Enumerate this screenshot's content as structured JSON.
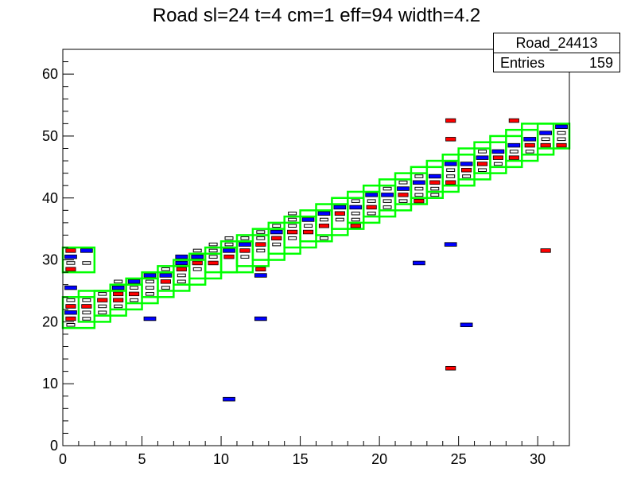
{
  "chart_data": {
    "type": "heatmap",
    "title": "Road sl=24 t=4 cm=1 eff=94 width=4.2",
    "stats_box": {
      "name": "Road_24413",
      "entries_label": "Entries",
      "entries_value": "159"
    },
    "xlim": [
      0,
      32
    ],
    "ylim": [
      0,
      64
    ],
    "x_ticks": [
      0,
      5,
      10,
      15,
      20,
      25,
      30
    ],
    "y_ticks": [
      0,
      10,
      20,
      30,
      40,
      50,
      60
    ],
    "colors": {
      "frame": "#000000",
      "road": "#00ff00",
      "high": "#0000ff",
      "mid": "#ff0000",
      "low": "#000000"
    },
    "road_cells": [
      {
        "x": 0,
        "y": 19,
        "w": 2,
        "h": 5
      },
      {
        "x": 1,
        "y": 20,
        "w": 2,
        "h": 5
      },
      {
        "x": 2,
        "y": 21,
        "w": 2,
        "h": 4
      },
      {
        "x": 3,
        "y": 22,
        "w": 2,
        "h": 4
      },
      {
        "x": 4,
        "y": 23,
        "w": 2,
        "h": 4
      },
      {
        "x": 5,
        "y": 24,
        "w": 2,
        "h": 4
      },
      {
        "x": 6,
        "y": 25,
        "w": 2,
        "h": 4
      },
      {
        "x": 7,
        "y": 26,
        "w": 2,
        "h": 4
      },
      {
        "x": 8,
        "y": 27,
        "w": 2,
        "h": 4
      },
      {
        "x": 9,
        "y": 28,
        "w": 2,
        "h": 4
      },
      {
        "x": 10,
        "y": 28,
        "w": 2,
        "h": 5
      },
      {
        "x": 11,
        "y": 29,
        "w": 2,
        "h": 5
      },
      {
        "x": 12,
        "y": 30,
        "w": 2,
        "h": 5
      },
      {
        "x": 13,
        "y": 31,
        "w": 2,
        "h": 5
      },
      {
        "x": 14,
        "y": 32,
        "w": 2,
        "h": 5
      },
      {
        "x": 15,
        "y": 33,
        "w": 2,
        "h": 5
      },
      {
        "x": 16,
        "y": 34,
        "w": 2,
        "h": 5
      },
      {
        "x": 17,
        "y": 35,
        "w": 2,
        "h": 5
      },
      {
        "x": 18,
        "y": 36,
        "w": 2,
        "h": 5
      },
      {
        "x": 19,
        "y": 37,
        "w": 2,
        "h": 5
      },
      {
        "x": 20,
        "y": 38,
        "w": 2,
        "h": 5
      },
      {
        "x": 21,
        "y": 39,
        "w": 2,
        "h": 5
      },
      {
        "x": 22,
        "y": 40,
        "w": 2,
        "h": 5
      },
      {
        "x": 23,
        "y": 41,
        "w": 2,
        "h": 5
      },
      {
        "x": 24,
        "y": 42,
        "w": 2,
        "h": 5
      },
      {
        "x": 25,
        "y": 43,
        "w": 2,
        "h": 5
      },
      {
        "x": 26,
        "y": 44,
        "w": 2,
        "h": 5
      },
      {
        "x": 27,
        "y": 45,
        "w": 2,
        "h": 5
      },
      {
        "x": 28,
        "y": 46,
        "w": 2,
        "h": 5
      },
      {
        "x": 29,
        "y": 47,
        "w": 2,
        "h": 5
      },
      {
        "x": 30,
        "y": 48,
        "w": 2,
        "h": 4
      },
      {
        "x": 0,
        "y": 28,
        "w": 2,
        "h": 4
      }
    ],
    "bins": [
      {
        "x": 0,
        "y": 19,
        "z": 1
      },
      {
        "x": 0,
        "y": 20,
        "z": 2
      },
      {
        "x": 0,
        "y": 21,
        "z": 3
      },
      {
        "x": 0,
        "y": 22,
        "z": 2
      },
      {
        "x": 0,
        "y": 23,
        "z": 1
      },
      {
        "x": 0,
        "y": 25,
        "z": 3
      },
      {
        "x": 0,
        "y": 28,
        "z": 2
      },
      {
        "x": 0,
        "y": 29,
        "z": 1
      },
      {
        "x": 0,
        "y": 30,
        "z": 3
      },
      {
        "x": 0,
        "y": 31,
        "z": 2
      },
      {
        "x": 1,
        "y": 20,
        "z": 1
      },
      {
        "x": 1,
        "y": 21,
        "z": 1
      },
      {
        "x": 1,
        "y": 22,
        "z": 2
      },
      {
        "x": 1,
        "y": 23,
        "z": 1
      },
      {
        "x": 1,
        "y": 29,
        "z": 1
      },
      {
        "x": 1,
        "y": 31,
        "z": 3
      },
      {
        "x": 2,
        "y": 21,
        "z": 1
      },
      {
        "x": 2,
        "y": 22,
        "z": 1
      },
      {
        "x": 2,
        "y": 23,
        "z": 2
      },
      {
        "x": 2,
        "y": 24,
        "z": 1
      },
      {
        "x": 3,
        "y": 22,
        "z": 1
      },
      {
        "x": 3,
        "y": 23,
        "z": 2
      },
      {
        "x": 3,
        "y": 24,
        "z": 2
      },
      {
        "x": 3,
        "y": 25,
        "z": 3
      },
      {
        "x": 3,
        "y": 26,
        "z": 1
      },
      {
        "x": 4,
        "y": 23,
        "z": 1
      },
      {
        "x": 4,
        "y": 24,
        "z": 2
      },
      {
        "x": 4,
        "y": 25,
        "z": 1
      },
      {
        "x": 4,
        "y": 26,
        "z": 3
      },
      {
        "x": 5,
        "y": 24,
        "z": 1
      },
      {
        "x": 5,
        "y": 25,
        "z": 1
      },
      {
        "x": 5,
        "y": 26,
        "z": 1
      },
      {
        "x": 5,
        "y": 27,
        "z": 3
      },
      {
        "x": 5,
        "y": 20,
        "z": 3
      },
      {
        "x": 6,
        "y": 25,
        "z": 1
      },
      {
        "x": 6,
        "y": 26,
        "z": 2
      },
      {
        "x": 6,
        "y": 27,
        "z": 3
      },
      {
        "x": 6,
        "y": 28,
        "z": 1
      },
      {
        "x": 7,
        "y": 26,
        "z": 1
      },
      {
        "x": 7,
        "y": 27,
        "z": 1
      },
      {
        "x": 7,
        "y": 28,
        "z": 2
      },
      {
        "x": 7,
        "y": 29,
        "z": 3
      },
      {
        "x": 7,
        "y": 30,
        "z": 3
      },
      {
        "x": 8,
        "y": 28,
        "z": 1
      },
      {
        "x": 8,
        "y": 29,
        "z": 2
      },
      {
        "x": 8,
        "y": 30,
        "z": 3
      },
      {
        "x": 8,
        "y": 31,
        "z": 1
      },
      {
        "x": 9,
        "y": 29,
        "z": 2
      },
      {
        "x": 9,
        "y": 30,
        "z": 1
      },
      {
        "x": 9,
        "y": 31,
        "z": 1
      },
      {
        "x": 9,
        "y": 32,
        "z": 1
      },
      {
        "x": 10,
        "y": 30,
        "z": 2
      },
      {
        "x": 10,
        "y": 31,
        "z": 3
      },
      {
        "x": 10,
        "y": 32,
        "z": 1
      },
      {
        "x": 10,
        "y": 33,
        "z": 1
      },
      {
        "x": 10,
        "y": 7,
        "z": 3
      },
      {
        "x": 11,
        "y": 30,
        "z": 1
      },
      {
        "x": 11,
        "y": 31,
        "z": 2
      },
      {
        "x": 11,
        "y": 32,
        "z": 3
      },
      {
        "x": 11,
        "y": 33,
        "z": 1
      },
      {
        "x": 12,
        "y": 31,
        "z": 1
      },
      {
        "x": 12,
        "y": 32,
        "z": 2
      },
      {
        "x": 12,
        "y": 33,
        "z": 1
      },
      {
        "x": 12,
        "y": 34,
        "z": 1
      },
      {
        "x": 12,
        "y": 28,
        "z": 2
      },
      {
        "x": 12,
        "y": 27,
        "z": 3
      },
      {
        "x": 12,
        "y": 20,
        "z": 3
      },
      {
        "x": 13,
        "y": 32,
        "z": 1
      },
      {
        "x": 13,
        "y": 33,
        "z": 2
      },
      {
        "x": 13,
        "y": 34,
        "z": 3
      },
      {
        "x": 13,
        "y": 35,
        "z": 1
      },
      {
        "x": 14,
        "y": 33,
        "z": 1
      },
      {
        "x": 14,
        "y": 34,
        "z": 2
      },
      {
        "x": 14,
        "y": 35,
        "z": 1
      },
      {
        "x": 14,
        "y": 36,
        "z": 1
      },
      {
        "x": 14,
        "y": 37,
        "z": 1
      },
      {
        "x": 15,
        "y": 34,
        "z": 2
      },
      {
        "x": 15,
        "y": 35,
        "z": 1
      },
      {
        "x": 15,
        "y": 36,
        "z": 3
      },
      {
        "x": 16,
        "y": 33,
        "z": 1
      },
      {
        "x": 16,
        "y": 35,
        "z": 2
      },
      {
        "x": 16,
        "y": 36,
        "z": 1
      },
      {
        "x": 16,
        "y": 37,
        "z": 3
      },
      {
        "x": 17,
        "y": 36,
        "z": 1
      },
      {
        "x": 17,
        "y": 37,
        "z": 2
      },
      {
        "x": 17,
        "y": 38,
        "z": 3
      },
      {
        "x": 18,
        "y": 35,
        "z": 2
      },
      {
        "x": 18,
        "y": 36,
        "z": 1
      },
      {
        "x": 18,
        "y": 37,
        "z": 1
      },
      {
        "x": 18,
        "y": 38,
        "z": 3
      },
      {
        "x": 18,
        "y": 39,
        "z": 1
      },
      {
        "x": 19,
        "y": 37,
        "z": 1
      },
      {
        "x": 19,
        "y": 38,
        "z": 2
      },
      {
        "x": 19,
        "y": 39,
        "z": 1
      },
      {
        "x": 19,
        "y": 40,
        "z": 3
      },
      {
        "x": 20,
        "y": 38,
        "z": 1
      },
      {
        "x": 20,
        "y": 39,
        "z": 1
      },
      {
        "x": 20,
        "y": 40,
        "z": 3
      },
      {
        "x": 20,
        "y": 41,
        "z": 1
      },
      {
        "x": 21,
        "y": 39,
        "z": 1
      },
      {
        "x": 21,
        "y": 40,
        "z": 2
      },
      {
        "x": 21,
        "y": 41,
        "z": 3
      },
      {
        "x": 21,
        "y": 42,
        "z": 1
      },
      {
        "x": 22,
        "y": 39,
        "z": 2
      },
      {
        "x": 22,
        "y": 40,
        "z": 1
      },
      {
        "x": 22,
        "y": 41,
        "z": 1
      },
      {
        "x": 22,
        "y": 42,
        "z": 3
      },
      {
        "x": 22,
        "y": 43,
        "z": 1
      },
      {
        "x": 22,
        "y": 29,
        "z": 3
      },
      {
        "x": 23,
        "y": 40,
        "z": 1
      },
      {
        "x": 23,
        "y": 41,
        "z": 1
      },
      {
        "x": 23,
        "y": 42,
        "z": 2
      },
      {
        "x": 23,
        "y": 43,
        "z": 3
      },
      {
        "x": 24,
        "y": 42,
        "z": 2
      },
      {
        "x": 24,
        "y": 43,
        "z": 1
      },
      {
        "x": 24,
        "y": 44,
        "z": 1
      },
      {
        "x": 24,
        "y": 45,
        "z": 3
      },
      {
        "x": 24,
        "y": 52,
        "z": 2
      },
      {
        "x": 24,
        "y": 49,
        "z": 2
      },
      {
        "x": 24,
        "y": 32,
        "z": 3
      },
      {
        "x": 24,
        "y": 12,
        "z": 2
      },
      {
        "x": 25,
        "y": 43,
        "z": 1
      },
      {
        "x": 25,
        "y": 44,
        "z": 2
      },
      {
        "x": 25,
        "y": 45,
        "z": 3
      },
      {
        "x": 25,
        "y": 19,
        "z": 3
      },
      {
        "x": 26,
        "y": 44,
        "z": 1
      },
      {
        "x": 26,
        "y": 45,
        "z": 2
      },
      {
        "x": 26,
        "y": 46,
        "z": 3
      },
      {
        "x": 26,
        "y": 47,
        "z": 1
      },
      {
        "x": 27,
        "y": 45,
        "z": 1
      },
      {
        "x": 27,
        "y": 46,
        "z": 2
      },
      {
        "x": 27,
        "y": 47,
        "z": 3
      },
      {
        "x": 28,
        "y": 46,
        "z": 2
      },
      {
        "x": 28,
        "y": 47,
        "z": 1
      },
      {
        "x": 28,
        "y": 48,
        "z": 3
      },
      {
        "x": 28,
        "y": 52,
        "z": 2
      },
      {
        "x": 29,
        "y": 47,
        "z": 1
      },
      {
        "x": 29,
        "y": 48,
        "z": 2
      },
      {
        "x": 29,
        "y": 49,
        "z": 3
      },
      {
        "x": 30,
        "y": 48,
        "z": 2
      },
      {
        "x": 30,
        "y": 49,
        "z": 1
      },
      {
        "x": 30,
        "y": 50,
        "z": 3
      },
      {
        "x": 30,
        "y": 31,
        "z": 2
      },
      {
        "x": 31,
        "y": 48,
        "z": 2
      },
      {
        "x": 31,
        "y": 49,
        "z": 1
      },
      {
        "x": 31,
        "y": 50,
        "z": 1
      },
      {
        "x": 31,
        "y": 51,
        "z": 3
      }
    ]
  }
}
